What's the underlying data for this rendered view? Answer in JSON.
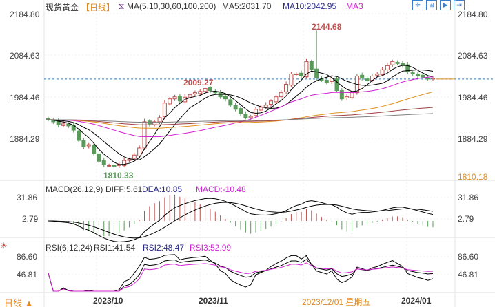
{
  "header": {
    "title": "现货黄金",
    "period": "【日线】",
    "ma_label": "MA(5,10,30,60,100,200)",
    "ma5": "MA5:2031.70",
    "ma10": "MA10:2042.95",
    "ma3": "MA3"
  },
  "toolbar": [
    "crosshair-icon",
    "zoom-in-icon",
    "zoom-out-icon",
    "next-icon"
  ],
  "main_axis": {
    "left": [
      "2184.80",
      "2084.63",
      "1984.46",
      "1884.29"
    ],
    "right": [
      "2184.80",
      "2084.63",
      "1984.46",
      "1884.29",
      "1810.18"
    ]
  },
  "annotations": {
    "high": "2144.68",
    "mid": "2009.27",
    "low": "1810.33"
  },
  "macd": {
    "label": "MACD(26,12,9)",
    "diff": "DIFF:5.61",
    "dea": "DEA:10.85",
    "macd": "MACD:-10.48",
    "ticks": [
      "31.86",
      "2.79"
    ]
  },
  "rsi": {
    "label": "RSI(6,12,24)",
    "rsi1": "RSI1:41.54",
    "rsi2": "RSI2:48.47",
    "rsi3": "RSI3:52.99",
    "ticks": [
      "86.60",
      "46.81"
    ]
  },
  "xaxis": {
    "labels": [
      "2023/10",
      "2023/11",
      "2024/01"
    ],
    "cursor": "2023/12/01 星期五",
    "period_btn": "日线 ▲"
  },
  "colors": {
    "up": "#c0504d",
    "down": "#5a9a5a",
    "ma30": "#d020d0",
    "ma60": "#e0901a",
    "ma100": "#a04040",
    "ma200": "#808080",
    "accent": "#e08a1e"
  },
  "chart_data": {
    "type": "candlestick",
    "ylim": [
      1810.18,
      2184.8
    ],
    "close": [
      1930,
      1925,
      1918,
      1920,
      1915,
      1905,
      1880,
      1865,
      1870,
      1848,
      1830,
      1822,
      1820,
      1818,
      1822,
      1832,
      1835,
      1845,
      1862,
      1925,
      1920,
      1925,
      1935,
      1970,
      1980,
      1985,
      1975,
      1984,
      1990,
      1995,
      1998,
      2005,
      2000,
      1995,
      1985,
      1980,
      1965,
      1955,
      1945,
      1935,
      1938,
      1955,
      1960,
      1965,
      1975,
      1985,
      1995,
      2015,
      2040,
      2040,
      2035,
      2070,
      2050,
      2030,
      2025,
      2020,
      2030,
      2000,
      1980,
      1985,
      1995,
      2035,
      2030,
      2025,
      2035,
      2040,
      2050,
      2060,
      2070,
      2065,
      2060,
      2045,
      2040,
      2035,
      2032,
      2028,
      2030
    ],
    "high_points": {
      "53": 2144.68,
      "31": 2009.27
    },
    "low_points": {
      "13": 1810.33
    },
    "current_price": 2027.8
  }
}
